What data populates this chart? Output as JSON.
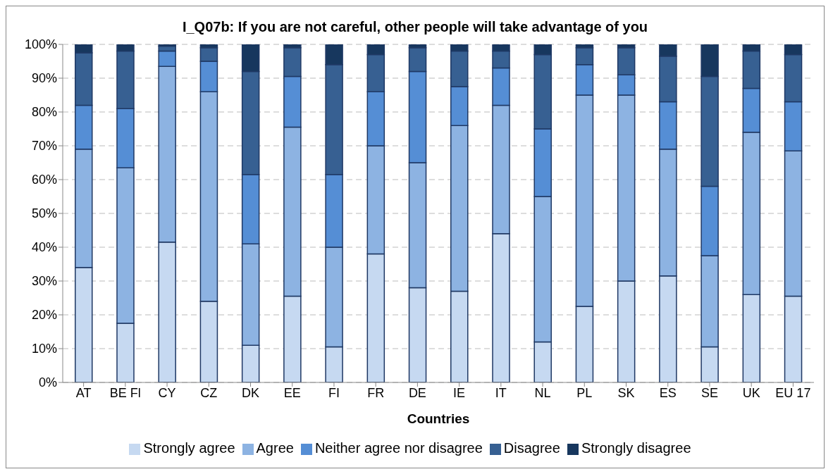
{
  "chart_data": {
    "type": "bar",
    "title": "I_Q07b: If you are not careful, other people will take advantage of you",
    "xlabel": "Countries",
    "categories": [
      "AT",
      "BE Fl",
      "CY",
      "CZ",
      "DK",
      "EE",
      "FI",
      "FR",
      "DE",
      "IE",
      "IT",
      "NL",
      "PL",
      "SK",
      "ES",
      "SE",
      "UK",
      "EU 17"
    ],
    "series": [
      {
        "name": "Strongly agree",
        "color": "#c6d9f1",
        "values": [
          34,
          17.5,
          41.5,
          24,
          11,
          25.5,
          10.5,
          38,
          28,
          27,
          44,
          12,
          22.5,
          30,
          31.5,
          10.5,
          26,
          25.5
        ]
      },
      {
        "name": "Agree",
        "color": "#8db3e2",
        "values": [
          35,
          46,
          52,
          62,
          30,
          50,
          29.5,
          32,
          37,
          49,
          38,
          43,
          62.5,
          55,
          37.5,
          27,
          48,
          43
        ]
      },
      {
        "name": "Neither agree nor disagree",
        "color": "#558ed5",
        "values": [
          13,
          17.5,
          4.5,
          9,
          20.5,
          15,
          21.5,
          16,
          27,
          11.5,
          11,
          20,
          9,
          6,
          14,
          20.5,
          13,
          14.5
        ]
      },
      {
        "name": "Disagree",
        "color": "#376092",
        "values": [
          15.5,
          17,
          1.5,
          4,
          30.5,
          8.5,
          32.5,
          11,
          7,
          10.5,
          5,
          22,
          5,
          8,
          13.5,
          32.5,
          11,
          14
        ]
      },
      {
        "name": "Strongly disagree",
        "color": "#17375e",
        "values": [
          2.5,
          2,
          0.5,
          1,
          8,
          1,
          6,
          3,
          1,
          2,
          2,
          3,
          1,
          1,
          3.5,
          9.5,
          2,
          3
        ]
      }
    ],
    "stacked": true,
    "ylim": [
      0,
      100
    ],
    "yticks": [
      {
        "value": 0,
        "label": "0%"
      },
      {
        "value": 10,
        "label": "10%"
      },
      {
        "value": 20,
        "label": "20%"
      },
      {
        "value": 30,
        "label": "30%"
      },
      {
        "value": 40,
        "label": "40%"
      },
      {
        "value": 50,
        "label": "50%"
      },
      {
        "value": 60,
        "label": "60%"
      },
      {
        "value": 70,
        "label": "70%"
      },
      {
        "value": 80,
        "label": "80%"
      },
      {
        "value": 90,
        "label": "90%"
      },
      {
        "value": 100,
        "label": "100%"
      }
    ],
    "grid": "y",
    "legend": "bottom"
  }
}
